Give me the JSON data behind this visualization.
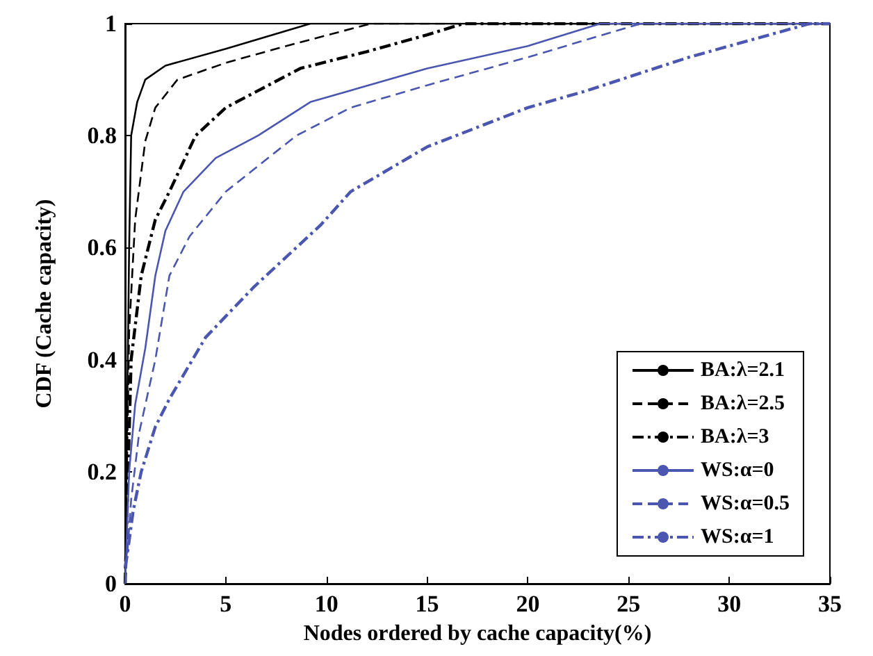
{
  "chart_data": {
    "type": "line",
    "xlabel": "Nodes ordered by cache capacity(%)",
    "ylabel": "CDF (Cache capacity)",
    "xlim": [
      0,
      35
    ],
    "ylim": [
      0,
      1
    ],
    "xticks": [
      0,
      5,
      10,
      15,
      20,
      25,
      30,
      35
    ],
    "yticks": [
      0,
      0.2,
      0.4,
      0.6,
      0.8,
      1
    ],
    "grid": false,
    "legend": "bottom right",
    "marker": "none",
    "series": [
      {
        "name": "BA:λ=2.1",
        "color": "#000000",
        "line_style": "solid",
        "x": [
          0,
          0.1,
          0.2,
          0.3,
          0.6,
          1,
          2,
          5,
          9.2,
          35
        ],
        "values": [
          0,
          0.3,
          0.6,
          0.8,
          0.86,
          0.9,
          0.925,
          0.955,
          1,
          1
        ]
      },
      {
        "name": "BA:λ=2.5",
        "color": "#000000",
        "line_style": "dashed",
        "x": [
          0,
          0.2,
          0.5,
          1,
          1.5,
          2.6,
          5,
          8,
          12.2,
          35
        ],
        "values": [
          0,
          0.45,
          0.65,
          0.79,
          0.85,
          0.9,
          0.93,
          0.96,
          1,
          1
        ]
      },
      {
        "name": "BA:λ=3",
        "color": "#000000",
        "line_style": "dashdot",
        "x": [
          0,
          0.3,
          0.8,
          1.5,
          2.2,
          3.5,
          5,
          8.7,
          12,
          15,
          16.8,
          35
        ],
        "values": [
          0,
          0.4,
          0.55,
          0.65,
          0.7,
          0.8,
          0.85,
          0.92,
          0.95,
          0.98,
          1,
          1
        ]
      },
      {
        "name": "WS:α=0",
        "color": "#4a56b0",
        "line_style": "solid",
        "x": [
          0,
          0.2,
          0.5,
          1,
          1.5,
          2,
          2.9,
          4.5,
          6.6,
          9.2,
          15,
          20,
          23.6,
          35
        ],
        "values": [
          0,
          0.2,
          0.32,
          0.42,
          0.55,
          0.63,
          0.7,
          0.76,
          0.8,
          0.86,
          0.92,
          0.96,
          1,
          1
        ]
      },
      {
        "name": "WS:α=0.5",
        "color": "#4a56b0",
        "line_style": "dashed",
        "x": [
          0,
          0.3,
          0.7,
          1.5,
          2.2,
          3.2,
          5,
          8.5,
          11.2,
          15,
          20,
          25.6,
          35
        ],
        "values": [
          0,
          0.15,
          0.27,
          0.4,
          0.55,
          0.62,
          0.7,
          0.8,
          0.85,
          0.89,
          0.94,
          1,
          1
        ]
      },
      {
        "name": "WS:α=1",
        "color": "#4a56b0",
        "line_style": "dashdot",
        "x": [
          0,
          0.1,
          0.4,
          0.8,
          1.5,
          2.2,
          4,
          6.4,
          9.7,
          11.2,
          15,
          20,
          22.9,
          28,
          34,
          35
        ],
        "values": [
          0.03,
          0.05,
          0.13,
          0.2,
          0.28,
          0.33,
          0.44,
          0.53,
          0.64,
          0.7,
          0.78,
          0.85,
          0.88,
          0.94,
          1,
          1
        ]
      }
    ]
  }
}
